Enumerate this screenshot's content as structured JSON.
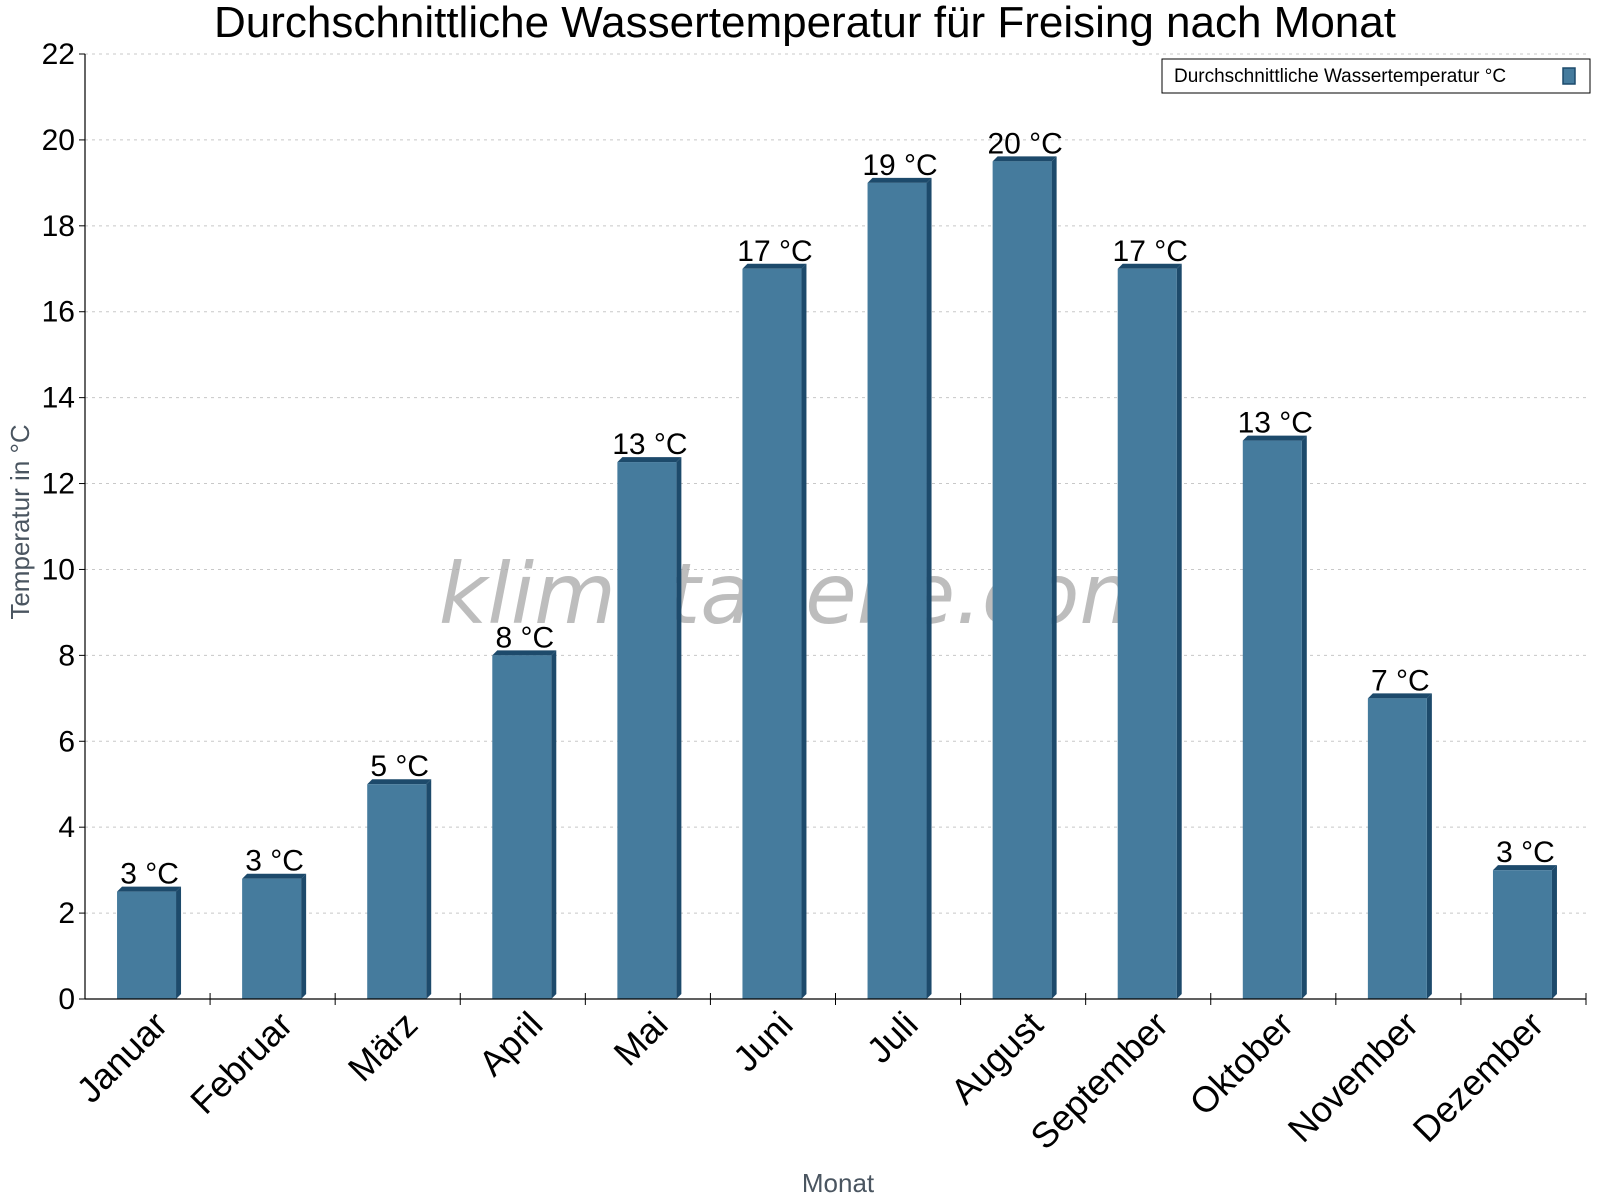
{
  "chart_data": {
    "type": "bar",
    "title": "Durchschnittliche Wassertemperatur für Freising nach Monat",
    "xlabel": "Monat",
    "ylabel": "Temperatur in °C",
    "ylim": [
      0,
      22
    ],
    "yticks": [
      0,
      2,
      4,
      6,
      8,
      10,
      12,
      14,
      16,
      18,
      20,
      22
    ],
    "grid": true,
    "legend_position": "top-right",
    "categories": [
      "Januar",
      "Februar",
      "März",
      "April",
      "Mai",
      "Juni",
      "Juli",
      "August",
      "September",
      "Oktober",
      "November",
      "Dezember"
    ],
    "series": [
      {
        "name": "Durchschnittliche Wassertemperatur °C",
        "color": "#457b9d",
        "values": [
          2.5,
          2.8,
          5.0,
          8.0,
          12.5,
          17.0,
          19.0,
          19.5,
          17.0,
          13.0,
          7.0,
          3.0
        ],
        "labels": [
          "3 °C",
          "3 °C",
          "5 °C",
          "8 °C",
          "13 °C",
          "17 °C",
          "19 °C",
          "20 °C",
          "17 °C",
          "13 °C",
          "7 °C",
          "3 °C"
        ]
      }
    ]
  },
  "watermark": "klimatabelle.com"
}
